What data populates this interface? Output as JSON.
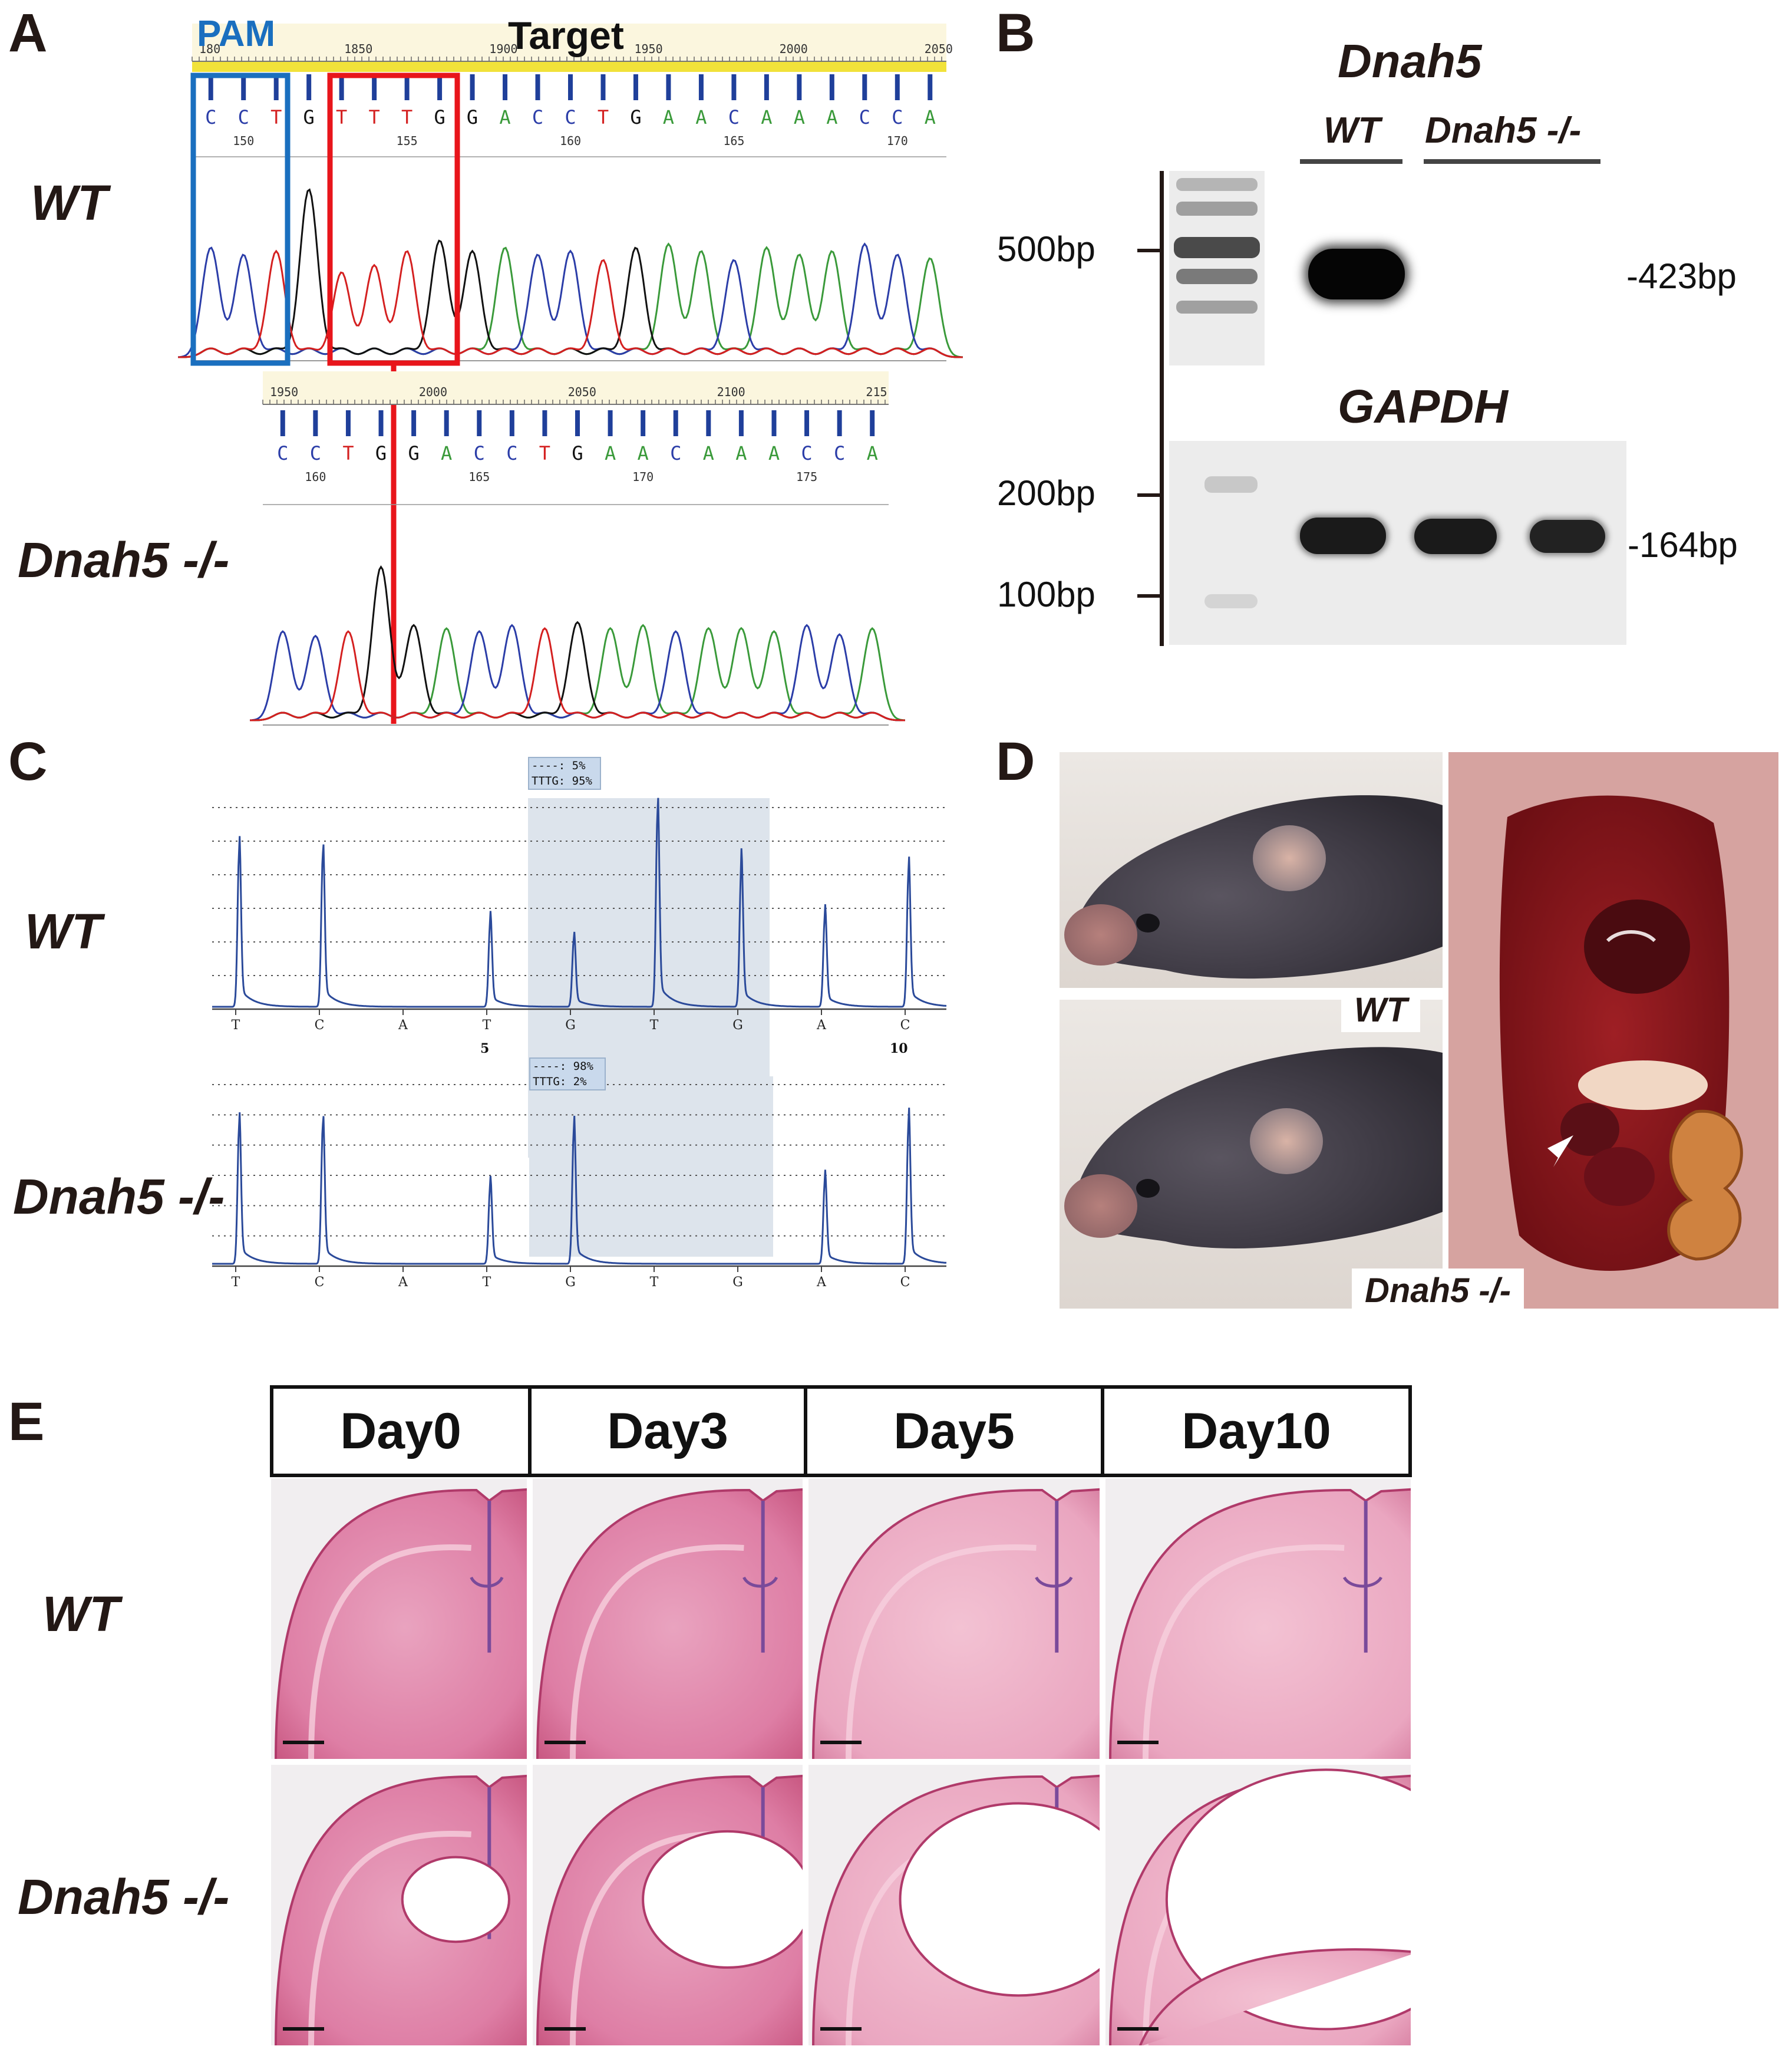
{
  "panels": {
    "a": {
      "letter": "A",
      "pam_label": "PAM",
      "target_label": "Target",
      "wt_label": "WT",
      "ko_label": "Dnah5 -/-",
      "wt_ruler": [
        "180",
        "1850",
        "1900",
        "1950",
        "2000",
        "2050"
      ],
      "wt_bases": "CCTGTTTGGACCTGAACAAACCA",
      "wt_positions": [
        "150",
        "155",
        "160",
        "165",
        "170"
      ],
      "ko_ruler": [
        "1950",
        "2000",
        "2050",
        "2100",
        "215"
      ],
      "ko_bases": "CCTGGACCTGAACAAACCA",
      "ko_positions": [
        "160",
        "165",
        "170",
        "175"
      ]
    },
    "b": {
      "letter": "B",
      "gene1": "Dnah5",
      "lane_wt": "WT",
      "lane_ko": "Dnah5 -/-",
      "marker_500": "500bp",
      "band_423": "-423bp",
      "gene2": "GAPDH",
      "marker_200": "200bp",
      "marker_100": "100bp",
      "band_164": "-164bp"
    },
    "c": {
      "letter": "C",
      "wt_label": "WT",
      "ko_label": "Dnah5 -/-",
      "wt_box_line1": "----: 5%",
      "wt_box_line2": "TTTG: 95%",
      "ko_box_line1": "----: 98%",
      "ko_box_line2": "TTTG: 2%",
      "bases": [
        "T",
        "C",
        "A",
        "T",
        "G",
        "T",
        "G",
        "A",
        "C"
      ],
      "wt_index_5": "5",
      "wt_index_10": "10",
      "wt_peaks": [
        0.8,
        0.78,
        0.44,
        0.35,
        1.0,
        0.72,
        0.47,
        0.7
      ],
      "ko_peaks": [
        0.79,
        0.79,
        0.45,
        0.77,
        0.48,
        0.81
      ]
    },
    "d": {
      "letter": "D",
      "wt_tag": "WT",
      "ko_tag": "Dnah5 -/-"
    },
    "e": {
      "letter": "E",
      "days": [
        "Day0",
        "Day3",
        "Day5",
        "Day10"
      ],
      "wt_label": "WT",
      "ko_label": "Dnah5 -/-",
      "ventricle_dilation_ko": [
        0.22,
        0.45,
        0.7,
        1.0
      ]
    },
    "colors": {
      "pam_box": "#1a6fbf",
      "target_box": "#e8151b",
      "trace_a": "#3a9a3a",
      "trace_c": "#2b3da8",
      "trace_g": "#111111",
      "trace_t": "#d42020",
      "pyro_trace": "#2b4a9a",
      "he_stain": "#e27aa2"
    }
  }
}
